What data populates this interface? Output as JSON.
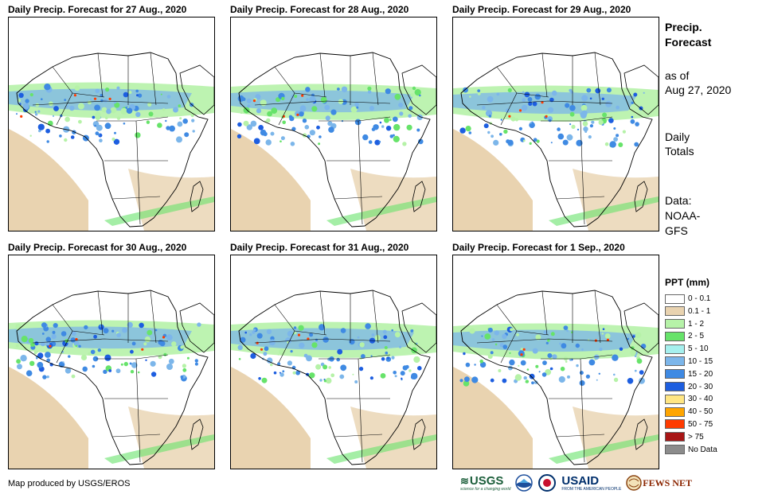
{
  "panels": [
    {
      "title": "Daily Precip. Forecast for 27 Aug., 2020"
    },
    {
      "title": "Daily Precip. Forecast for 28 Aug., 2020"
    },
    {
      "title": "Daily Precip. Forecast for 29 Aug., 2020"
    },
    {
      "title": "Daily Precip. Forecast for 30 Aug., 2020"
    },
    {
      "title": "Daily Precip. Forecast for 31 Aug., 2020"
    },
    {
      "title": "Daily Precip. Forecast for 1 Sep., 2020"
    }
  ],
  "sidebar": {
    "heading_line1": "Precip.",
    "heading_line2": "Forecast",
    "asof_line1": "as of",
    "asof_line2": "Aug 27, 2020",
    "totals_line1": "Daily",
    "totals_line2": "Totals",
    "data_line1": "Data:",
    "data_line2": "NOAA-",
    "data_line3": "GFS"
  },
  "legend": {
    "title": "PPT (mm)",
    "items": [
      {
        "label": "0 - 0.1",
        "color": "#ffffff"
      },
      {
        "label": "0.1 - 1",
        "color": "#e9d3b0"
      },
      {
        "label": "1 - 2",
        "color": "#b6f2a8"
      },
      {
        "label": "2 - 5",
        "color": "#67e36a"
      },
      {
        "label": "5 - 10",
        "color": "#a6f0ee"
      },
      {
        "label": "10 - 15",
        "color": "#7cb6ea"
      },
      {
        "label": "15 - 20",
        "color": "#3f8ae3"
      },
      {
        "label": "20 - 30",
        "color": "#1d5ee0"
      },
      {
        "label": "30 - 40",
        "color": "#ffe683"
      },
      {
        "label": "40 - 50",
        "color": "#ffa500"
      },
      {
        "label": "50 - 75",
        "color": "#ff3b00"
      },
      {
        "label": "> 75",
        "color": "#a81515"
      },
      {
        "label": "No Data",
        "color": "#8c8c8c"
      }
    ]
  },
  "footer": {
    "credit": "Map produced by USGS/EROS"
  },
  "logos": {
    "usgs": "USGS",
    "usgs_tagline": "science for a changing world",
    "usaid": "USAID",
    "usaid_tagline": "FROM THE AMERICAN PEOPLE",
    "fews": "FEWS NET"
  }
}
